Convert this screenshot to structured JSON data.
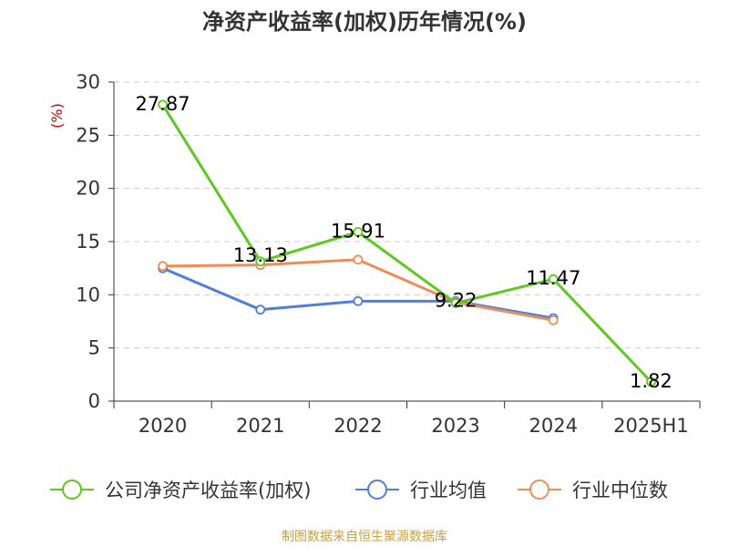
{
  "title": "净资产收益率(加权)历年情况(%)",
  "source": "制图数据来自恒生聚源数据库",
  "chart_data": {
    "type": "line",
    "categories": [
      "2020",
      "2021",
      "2022",
      "2023",
      "2024",
      "2025H1"
    ],
    "yunit": "(%)",
    "ylim": [
      0,
      30
    ],
    "yticks": [
      0,
      5,
      10,
      15,
      20,
      25,
      30
    ],
    "grid": true,
    "legend_position": "bottom",
    "series": [
      {
        "name": "公司净资产收益率(加权)",
        "color": "#5cc91e",
        "values": [
          27.87,
          13.13,
          15.91,
          9.22,
          11.47,
          1.82
        ],
        "show_labels": true
      },
      {
        "name": "行业均值",
        "color": "#4e7fdc",
        "values": [
          12.5,
          8.6,
          9.4,
          9.4,
          7.8,
          null
        ],
        "show_labels": false
      },
      {
        "name": "行业中位数",
        "color": "#f28c55",
        "values": [
          12.7,
          12.8,
          13.3,
          9.3,
          7.6,
          null
        ],
        "show_labels": false
      }
    ]
  }
}
